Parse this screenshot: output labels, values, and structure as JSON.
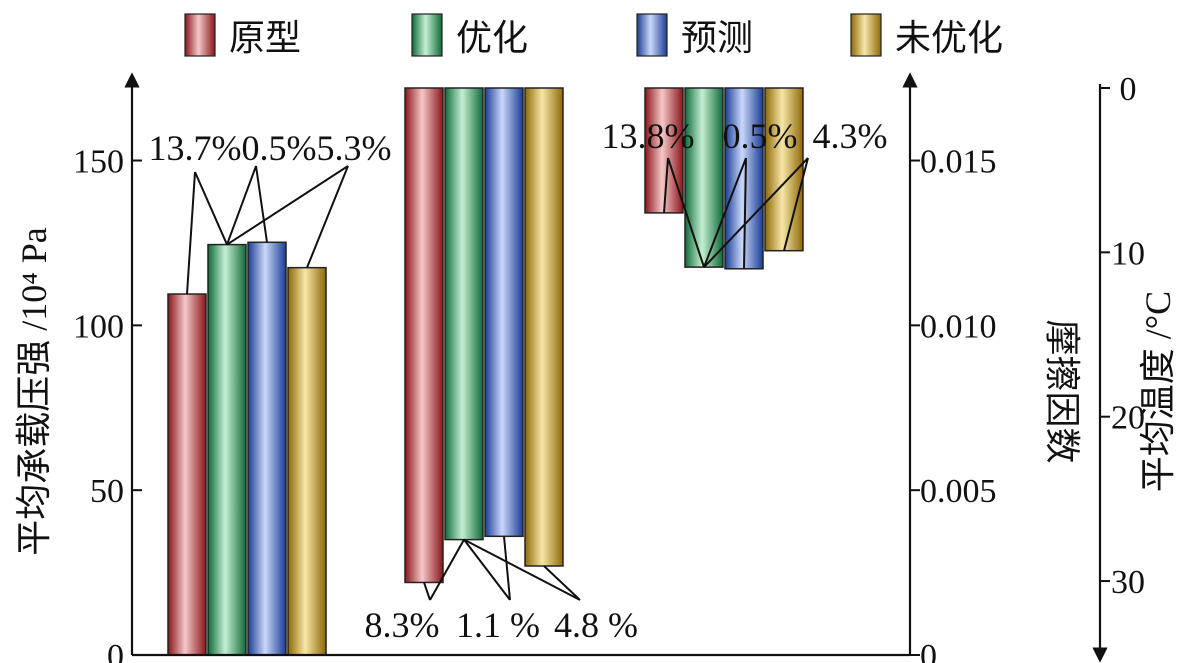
{
  "chart_data": {
    "type": "bar",
    "legend": {
      "position": "top",
      "entries": [
        {
          "name": "原型",
          "color": "#c8262b"
        },
        {
          "name": "优化",
          "color": "#1f9a55"
        },
        {
          "name": "预测",
          "color": "#2f5ed1"
        },
        {
          "name": "未优化",
          "color": "#c99a14"
        }
      ]
    },
    "axes": {
      "left": {
        "label": "平均承载压强 /10⁴ Pa",
        "ylim": [
          0,
          172
        ],
        "ticks": [
          0,
          50,
          100,
          150
        ]
      },
      "friction": {
        "label": "摩擦因数",
        "ylim": [
          0,
          0.0172
        ],
        "ticks": [
          "0",
          "0.005",
          "0.010",
          "0.015"
        ]
      },
      "temperature": {
        "label": "平均温度 /°C",
        "ylim": [
          0,
          34.5
        ],
        "inverted": true,
        "ticks": [
          0,
          10,
          20,
          30
        ]
      }
    },
    "groups": [
      {
        "metric": "平均承载压强",
        "axis": "left",
        "series": [
          {
            "name": "原型",
            "value": 109.5
          },
          {
            "name": "优化",
            "value": 124.5
          },
          {
            "name": "预测",
            "value": 125.2
          },
          {
            "name": "未优化",
            "value": 117.5
          }
        ],
        "annotations": [
          "13.7%",
          "0.5%",
          "5.3%"
        ]
      },
      {
        "metric": "摩擦因数",
        "axis": "friction",
        "series": [
          {
            "name": "原型",
            "value": 0.0022
          },
          {
            "name": "优化",
            "value": 0.0035
          },
          {
            "name": "预测",
            "value": 0.0036
          },
          {
            "name": "未优化",
            "value": 0.0027
          }
        ],
        "annotations": [
          "8.3%",
          "1.1 %",
          "4.8 %"
        ]
      },
      {
        "metric": "平均温度",
        "axis": "temperature",
        "series": [
          {
            "name": "原型",
            "value": 7.6
          },
          {
            "name": "优化",
            "value": 10.9
          },
          {
            "name": "预测",
            "value": 11.0
          },
          {
            "name": "未优化",
            "value": 9.9
          }
        ],
        "annotations": [
          "13.8%",
          "0.5%",
          "4.3%"
        ]
      }
    ]
  }
}
